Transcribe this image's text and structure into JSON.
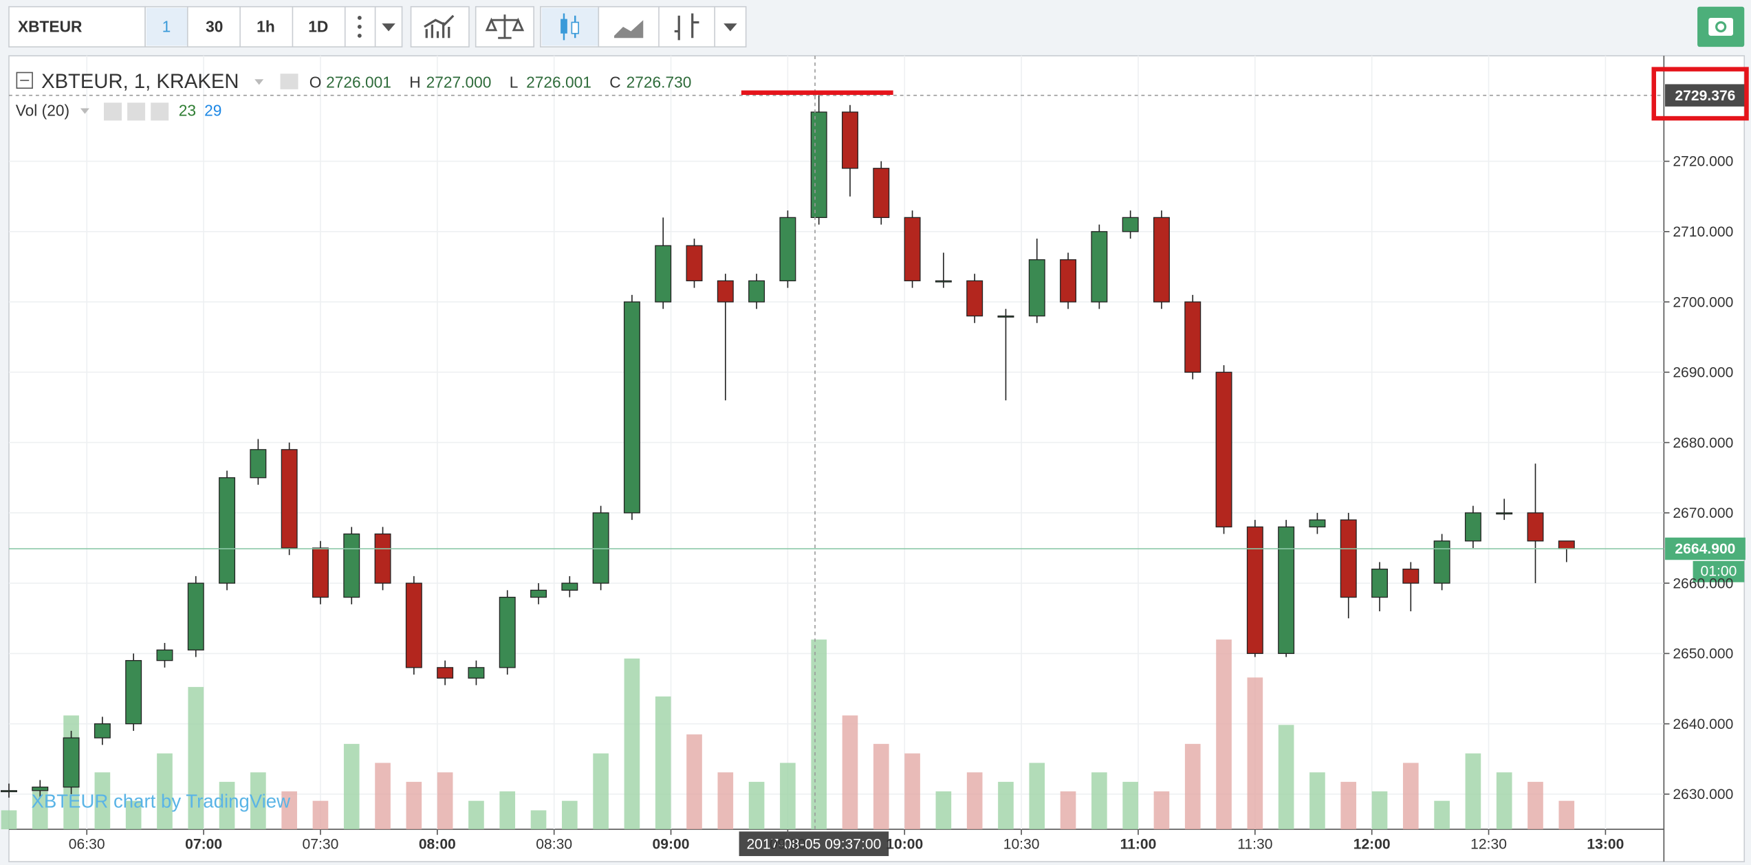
{
  "toolbar": {
    "symbol": "XBTEUR",
    "intervals": [
      "1",
      "30",
      "1h",
      "1D"
    ]
  },
  "legend": {
    "title": "XBTEUR, 1, KRAKEN",
    "ohlc": [
      [
        "O",
        "2726.001"
      ],
      [
        "H",
        "2727.000"
      ],
      [
        "L",
        "2726.001"
      ],
      [
        "C",
        "2726.730"
      ]
    ],
    "volume_title": "Vol (20)",
    "volume_values": [
      "23",
      "29"
    ]
  },
  "watermark": "XBTEUR chart by TradingView",
  "chart_data": {
    "type": "candlestick",
    "x": [
      "06:10",
      "06:18",
      "06:26",
      "06:34",
      "06:42",
      "06:50",
      "06:58",
      "07:06",
      "07:14",
      "07:22",
      "07:30",
      "07:38",
      "07:46",
      "07:54",
      "08:02",
      "08:10",
      "08:18",
      "08:26",
      "08:34",
      "08:42",
      "08:50",
      "08:58",
      "09:06",
      "09:14",
      "09:22",
      "09:30",
      "09:38",
      "09:46",
      "09:54",
      "10:02",
      "10:10",
      "10:18",
      "10:26",
      "10:34",
      "10:42",
      "10:50",
      "10:58",
      "11:06",
      "11:14",
      "11:22",
      "11:30",
      "11:38",
      "11:46",
      "11:54",
      "12:02",
      "12:10",
      "12:18",
      "12:26",
      "12:34",
      "12:42",
      "12:50"
    ],
    "open": [
      2630.5,
      2630.5,
      2631,
      2638,
      2640,
      2649,
      2650.5,
      2660,
      2675,
      2679,
      2665,
      2658,
      2667,
      2660,
      2648,
      2646.5,
      2648,
      2658,
      2659,
      2660,
      2670,
      2700,
      2708,
      2703,
      2700,
      2703,
      2712,
      2727,
      2719,
      2712,
      2703,
      2703,
      2698,
      2698,
      2706,
      2700,
      2710,
      2712,
      2700,
      2690,
      2668,
      2650,
      2668,
      2669,
      2658,
      2662,
      2660,
      2666,
      2670,
      2670,
      2666
    ],
    "high": [
      2631.5,
      2632,
      2639,
      2641,
      2650,
      2651.5,
      2661,
      2676,
      2680.5,
      2680,
      2666,
      2668,
      2668,
      2661,
      2649,
      2649,
      2659,
      2660,
      2661,
      2671,
      2701,
      2712,
      2709,
      2704,
      2704,
      2713,
      2729.4,
      2728,
      2720,
      2713,
      2707,
      2704,
      2699,
      2709,
      2707,
      2711,
      2713,
      2713,
      2701,
      2691,
      2669,
      2669,
      2670,
      2670,
      2663,
      2663,
      2667,
      2671,
      2672,
      2677,
      2666
    ],
    "low": [
      2629.5,
      2629.5,
      2630,
      2637,
      2639,
      2648,
      2649.5,
      2659,
      2674,
      2664,
      2657,
      2657,
      2659,
      2647,
      2645.5,
      2645.5,
      2647,
      2657,
      2658,
      2659,
      2669,
      2699,
      2702,
      2686,
      2699,
      2702,
      2711,
      2715,
      2711,
      2702,
      2702,
      2697,
      2686,
      2697,
      2699,
      2699,
      2709,
      2699,
      2689,
      2667,
      2649.5,
      2649.5,
      2667,
      2655,
      2656,
      2656,
      2659,
      2665,
      2669,
      2660,
      2663
    ],
    "close": [
      2630.5,
      2631,
      2638,
      2640,
      2649,
      2650.5,
      2660,
      2675,
      2679,
      2665,
      2658,
      2667,
      2660,
      2648,
      2646.5,
      2648,
      2658,
      2659,
      2660,
      2670,
      2700,
      2708,
      2703,
      2700,
      2703,
      2712,
      2727,
      2719,
      2712,
      2703,
      2703,
      2698,
      2698,
      2706,
      2700,
      2710,
      2712,
      2700,
      2690,
      2668,
      2650,
      2668,
      2669,
      2658,
      2662,
      2660,
      2666,
      2670,
      2670,
      2666,
      2664.9
    ],
    "volume": [
      2,
      4,
      12,
      6,
      3,
      8,
      15,
      5,
      6,
      4,
      3,
      9,
      7,
      5,
      6,
      3,
      4,
      2,
      3,
      8,
      18,
      14,
      10,
      6,
      5,
      7,
      20,
      12,
      9,
      8,
      4,
      6,
      5,
      7,
      4,
      6,
      5,
      4,
      9,
      20,
      16,
      11,
      6,
      5,
      4,
      7,
      3,
      8,
      6,
      5,
      3
    ],
    "up_color": "#3b8a52",
    "down_color": "#b3261e",
    "volume_up_color": "#9fd3a6",
    "volume_down_color": "#e3aaa6",
    "xlim": [
      "06:10",
      "13:15"
    ],
    "xticks": [
      "06:30",
      "07:00",
      "07:30",
      "08:00",
      "08:30",
      "09:00",
      "09:30",
      "10:00",
      "10:30",
      "11:00",
      "11:30",
      "12:00",
      "12:30",
      "13:00"
    ],
    "ylim": [
      2625,
      2735
    ],
    "yticks": [
      {
        "value": 2630,
        "label": "2630.000"
      },
      {
        "value": 2640,
        "label": "2640.000"
      },
      {
        "value": 2650,
        "label": "2650.000"
      },
      {
        "value": 2660,
        "label": "2660.000"
      },
      {
        "value": 2670,
        "label": "2670.000"
      },
      {
        "value": 2680,
        "label": "2680.000"
      },
      {
        "value": 2690,
        "label": "2690.000"
      },
      {
        "value": 2700,
        "label": "2700.000"
      },
      {
        "value": 2710,
        "label": "2710.000"
      },
      {
        "value": 2720,
        "label": "2720.000"
      }
    ],
    "y2lim": [
      0,
      40
    ],
    "grid": true,
    "last_price": {
      "value": 2664.9,
      "label": "2664.900",
      "countdown": "01:00"
    },
    "crosshair": {
      "time_label": "2017-08-05 09:37:00",
      "price": {
        "value": 2729.376,
        "label": "2729.376"
      }
    }
  }
}
